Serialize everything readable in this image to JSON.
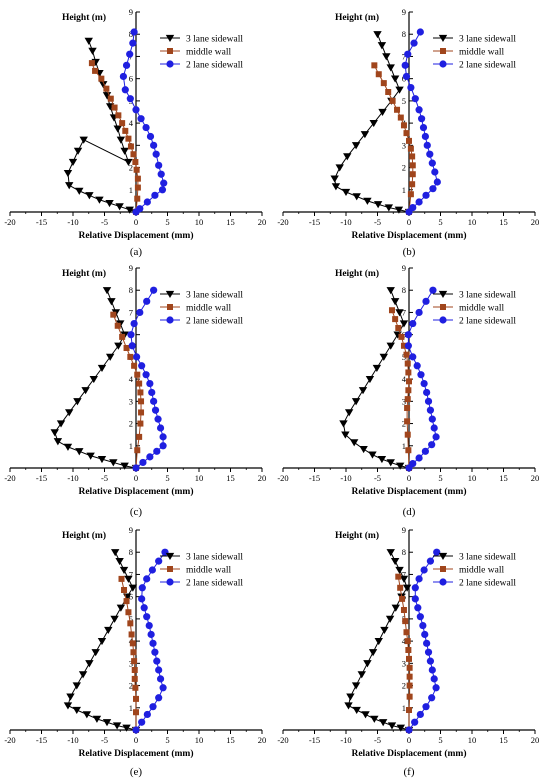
{
  "figure": {
    "legend_labels": [
      "3 lane sidewall",
      "middle wall",
      "2 lane sidewall"
    ],
    "colors": {
      "three_lane": "#000000",
      "middle": "#a0451c",
      "two_lane": "#1f1fe0",
      "axis": "#000000"
    },
    "markers": {
      "three_lane": "triangle-down",
      "middle": "square",
      "two_lane": "circle"
    }
  },
  "chart_data": [
    {
      "type": "line",
      "panel_label": "(a)",
      "xlabel": "Relative Displacement (mm)",
      "ylabel": "Height (m)",
      "xlim": [
        -20,
        20
      ],
      "ylim": [
        0,
        9
      ],
      "xticks": [
        -20,
        -15,
        -10,
        -5,
        0,
        5,
        10,
        15,
        20
      ],
      "yticks": [
        1,
        2,
        3,
        4,
        5,
        6,
        7,
        8,
        9
      ],
      "legend_position": "top-right",
      "series": [
        {
          "name": "3 lane sidewall",
          "marker": "triangle-down",
          "x": [
            -7.5,
            -6.9,
            -6.4,
            -5.8,
            -5.2,
            -4.6,
            -4.1,
            -3.5,
            -2.9,
            -2.4,
            -1.8,
            -1.2,
            -8.3,
            -9.2,
            -10.0,
            -10.8,
            -10.6,
            -9.0,
            -7.4,
            -5.8,
            -4.2,
            -2.6,
            -1.0,
            0.0
          ],
          "y": [
            7.7,
            7.25,
            6.75,
            6.25,
            5.75,
            5.25,
            4.75,
            4.25,
            3.75,
            3.25,
            2.75,
            2.25,
            3.25,
            2.75,
            2.25,
            1.75,
            1.2,
            0.95,
            0.75,
            0.55,
            0.4,
            0.25,
            0.1,
            0.0
          ]
        },
        {
          "name": "middle wall",
          "marker": "square",
          "x": [
            -7.0,
            -6.5,
            -5.5,
            -4.7,
            -4.0,
            -3.4,
            -2.8,
            -2.2,
            -1.7,
            -1.2,
            -0.8,
            -0.4,
            -0.1,
            0.1,
            0.3,
            0.3,
            0.2,
            0.0
          ],
          "y": [
            6.7,
            6.35,
            6.0,
            5.55,
            5.1,
            4.7,
            4.35,
            4.0,
            3.65,
            3.3,
            2.95,
            2.6,
            2.25,
            1.9,
            1.5,
            1.1,
            0.6,
            0.0
          ]
        },
        {
          "name": "2 lane sidewall",
          "marker": "circle",
          "x": [
            -0.3,
            -0.5,
            -1.0,
            -1.5,
            -2.0,
            -1.7,
            -0.9,
            0.0,
            0.8,
            1.6,
            2.3,
            2.8,
            3.2,
            3.6,
            4.0,
            4.4,
            4.2,
            3.0,
            1.8,
            0.6,
            0.0
          ],
          "y": [
            8.1,
            7.6,
            7.1,
            6.6,
            6.1,
            5.5,
            5.1,
            4.6,
            4.2,
            3.8,
            3.4,
            3.0,
            2.6,
            2.1,
            1.7,
            1.3,
            1.0,
            0.75,
            0.45,
            0.15,
            0.0
          ]
        }
      ]
    },
    {
      "type": "line",
      "panel_label": "(b)",
      "xlabel": "Relative Displacement (mm)",
      "ylabel": "Height (m)",
      "xlim": [
        -20,
        20
      ],
      "ylim": [
        0,
        9
      ],
      "xticks": [
        -20,
        -15,
        -10,
        -5,
        0,
        5,
        10,
        15,
        20
      ],
      "yticks": [
        1,
        2,
        3,
        4,
        5,
        6,
        7,
        8,
        9
      ],
      "legend_position": "top-right",
      "series": [
        {
          "name": "3 lane sidewall",
          "marker": "triangle-down",
          "x": [
            -5.0,
            -4.3,
            -3.6,
            -2.9,
            -2.2,
            -1.5,
            -2.8,
            -4.2,
            -5.6,
            -7.0,
            -8.4,
            -9.8,
            -11.0,
            -11.8,
            -11.6,
            -10.0,
            -8.3,
            -6.6,
            -4.9,
            -3.2,
            -1.6,
            0.0
          ],
          "y": [
            8.0,
            7.5,
            7.0,
            6.5,
            6.0,
            5.5,
            5.0,
            4.5,
            4.0,
            3.5,
            3.0,
            2.5,
            2.0,
            1.5,
            1.15,
            0.9,
            0.7,
            0.5,
            0.35,
            0.2,
            0.1,
            0.0
          ]
        },
        {
          "name": "middle wall",
          "marker": "square",
          "x": [
            -5.5,
            -4.8,
            -4.0,
            -3.3,
            -2.6,
            -1.9,
            -1.3,
            -0.8,
            -0.4,
            0.0,
            0.3,
            0.5,
            0.6,
            0.6,
            0.5,
            0.3,
            0.0
          ],
          "y": [
            6.6,
            6.2,
            5.8,
            5.4,
            5.0,
            4.6,
            4.25,
            3.9,
            3.55,
            3.2,
            2.85,
            2.5,
            2.1,
            1.7,
            1.25,
            0.8,
            0.0
          ]
        },
        {
          "name": "2 lane sidewall",
          "marker": "circle",
          "x": [
            1.8,
            0.8,
            -0.2,
            -0.6,
            -0.4,
            0.3,
            1.0,
            1.6,
            2.0,
            2.3,
            2.6,
            2.9,
            3.3,
            3.7,
            4.1,
            4.5,
            3.8,
            2.7,
            1.6,
            0.6,
            0.0
          ],
          "y": [
            8.1,
            7.6,
            7.1,
            6.6,
            6.1,
            5.6,
            5.1,
            4.6,
            4.2,
            3.8,
            3.4,
            3.0,
            2.6,
            2.2,
            1.8,
            1.35,
            1.05,
            0.75,
            0.45,
            0.2,
            0.0
          ]
        }
      ]
    },
    {
      "type": "line",
      "panel_label": "(c)",
      "xlabel": "Relative Displacement (mm)",
      "ylabel": "Height (m)",
      "xlim": [
        -20,
        20
      ],
      "ylim": [
        0,
        9
      ],
      "xticks": [
        -20,
        -15,
        -10,
        -5,
        0,
        5,
        10,
        15,
        20
      ],
      "yticks": [
        1,
        2,
        3,
        4,
        5,
        6,
        7,
        8,
        9
      ],
      "legend_position": "top-right",
      "series": [
        {
          "name": "3 lane sidewall",
          "marker": "triangle-down",
          "x": [
            -4.6,
            -3.9,
            -3.2,
            -2.5,
            -1.8,
            -2.8,
            -4.1,
            -5.4,
            -6.7,
            -8.0,
            -9.3,
            -10.6,
            -11.9,
            -12.9,
            -12.4,
            -10.8,
            -9.0,
            -7.2,
            -5.4,
            -3.6,
            -1.8,
            0.0
          ],
          "y": [
            8.0,
            7.5,
            7.0,
            6.5,
            6.0,
            5.5,
            5.0,
            4.5,
            4.0,
            3.5,
            3.0,
            2.5,
            2.0,
            1.6,
            1.2,
            0.95,
            0.75,
            0.55,
            0.4,
            0.25,
            0.1,
            0.0
          ]
        },
        {
          "name": "middle wall",
          "marker": "square",
          "x": [
            -3.6,
            -2.9,
            -2.2,
            -1.5,
            -0.9,
            -0.3,
            0.2,
            0.5,
            0.7,
            0.8,
            0.8,
            0.7,
            0.5,
            0.2,
            0.0
          ],
          "y": [
            6.9,
            6.4,
            5.9,
            5.4,
            5.0,
            4.6,
            4.2,
            3.8,
            3.4,
            3.0,
            2.5,
            2.0,
            1.4,
            0.8,
            0.0
          ]
        },
        {
          "name": "2 lane sidewall",
          "marker": "circle",
          "x": [
            2.8,
            1.7,
            0.6,
            -0.3,
            -0.8,
            -0.6,
            0.1,
            0.9,
            1.6,
            2.2,
            2.5,
            2.8,
            3.1,
            3.5,
            3.9,
            4.3,
            4.3,
            3.3,
            2.2,
            1.1,
            0.0
          ],
          "y": [
            8.0,
            7.5,
            7.0,
            6.5,
            6.0,
            5.5,
            5.0,
            4.6,
            4.2,
            3.8,
            3.4,
            3.0,
            2.6,
            2.2,
            1.8,
            1.4,
            1.0,
            0.75,
            0.5,
            0.25,
            0.0
          ]
        }
      ]
    },
    {
      "type": "line",
      "panel_label": "(d)",
      "xlabel": "Relative Displacement (mm)",
      "ylabel": "Height (m)",
      "xlim": [
        -20,
        20
      ],
      "ylim": [
        0,
        9
      ],
      "xticks": [
        -20,
        -15,
        -10,
        -5,
        0,
        5,
        10,
        15,
        20
      ],
      "yticks": [
        1,
        2,
        3,
        4,
        5,
        6,
        7,
        8,
        9
      ],
      "legend_position": "top-right",
      "series": [
        {
          "name": "3 lane sidewall",
          "marker": "triangle-down",
          "x": [
            -2.9,
            -2.2,
            -1.5,
            -0.8,
            -1.8,
            -2.9,
            -4.0,
            -5.1,
            -6.2,
            -7.3,
            -8.4,
            -9.5,
            -10.4,
            -10.1,
            -8.7,
            -7.2,
            -5.8,
            -4.3,
            -2.9,
            -1.4,
            0.0
          ],
          "y": [
            8.0,
            7.5,
            7.0,
            6.5,
            6.0,
            5.5,
            5.0,
            4.5,
            4.0,
            3.5,
            3.0,
            2.5,
            2.0,
            1.5,
            1.15,
            0.85,
            0.6,
            0.4,
            0.25,
            0.1,
            0.0
          ]
        },
        {
          "name": "middle wall",
          "marker": "square",
          "x": [
            -2.7,
            -2.2,
            -1.7,
            -1.2,
            -0.8,
            -0.4,
            -0.2,
            -0.1,
            0.0,
            -0.1,
            -0.2,
            -0.3,
            -0.3,
            -0.2,
            -0.1,
            0.0
          ],
          "y": [
            7.1,
            6.7,
            6.3,
            5.9,
            5.5,
            5.1,
            4.7,
            4.3,
            3.9,
            3.5,
            3.1,
            2.7,
            2.1,
            1.5,
            0.8,
            0.0
          ]
        },
        {
          "name": "2 lane sidewall",
          "marker": "circle",
          "x": [
            3.8,
            2.7,
            1.6,
            0.6,
            -0.1,
            -0.1,
            0.6,
            1.3,
            1.9,
            2.4,
            2.8,
            3.1,
            3.4,
            3.7,
            4.0,
            4.3,
            3.6,
            2.6,
            1.6,
            0.6,
            0.0
          ],
          "y": [
            8.0,
            7.5,
            7.0,
            6.5,
            6.0,
            5.5,
            5.0,
            4.6,
            4.2,
            3.8,
            3.4,
            3.0,
            2.6,
            2.2,
            1.8,
            1.4,
            1.05,
            0.75,
            0.45,
            0.2,
            0.0
          ]
        }
      ]
    },
    {
      "type": "line",
      "panel_label": "(e)",
      "xlabel": "Relative Displacement (mm)",
      "ylabel": "Height (m)",
      "xlim": [
        -20,
        20
      ],
      "ylim": [
        0,
        9
      ],
      "xticks": [
        -20,
        -15,
        -10,
        -5,
        0,
        5,
        10,
        15,
        20
      ],
      "yticks": [
        1,
        2,
        3,
        4,
        5,
        6,
        7,
        8,
        9
      ],
      "legend_position": "top-right",
      "series": [
        {
          "name": "3 lane sidewall",
          "marker": "triangle-down",
          "x": [
            -3.3,
            -2.6,
            -1.9,
            -1.2,
            -0.5,
            -1.4,
            -2.4,
            -3.4,
            -4.4,
            -5.4,
            -6.4,
            -7.4,
            -8.4,
            -9.4,
            -10.4,
            -10.8,
            -9.4,
            -7.8,
            -6.2,
            -4.6,
            -3.0,
            -1.5,
            0.0
          ],
          "y": [
            8.0,
            7.6,
            7.2,
            6.8,
            6.4,
            6.0,
            5.5,
            5.0,
            4.5,
            4.0,
            3.5,
            3.0,
            2.5,
            2.0,
            1.5,
            1.1,
            0.9,
            0.7,
            0.5,
            0.35,
            0.2,
            0.1,
            0.0
          ]
        },
        {
          "name": "middle wall",
          "marker": "square",
          "x": [
            -2.3,
            -1.9,
            -1.5,
            -1.2,
            -0.9,
            -0.7,
            -0.5,
            -0.4,
            -0.3,
            -0.2,
            -0.2,
            -0.1,
            0.0,
            0.0,
            0.0
          ],
          "y": [
            6.8,
            6.3,
            5.8,
            5.3,
            4.8,
            4.3,
            3.9,
            3.5,
            3.1,
            2.7,
            2.3,
            1.9,
            1.4,
            0.8,
            0.0
          ]
        },
        {
          "name": "2 lane sidewall",
          "marker": "circle",
          "x": [
            4.6,
            3.6,
            2.6,
            1.7,
            1.0,
            0.9,
            1.3,
            1.7,
            2.1,
            2.4,
            2.7,
            3.0,
            3.3,
            3.6,
            3.9,
            4.3,
            3.6,
            2.7,
            1.8,
            0.9,
            0.0
          ],
          "y": [
            8.0,
            7.6,
            7.2,
            6.8,
            6.4,
            5.9,
            5.5,
            5.1,
            4.7,
            4.3,
            3.9,
            3.5,
            3.1,
            2.7,
            2.3,
            1.9,
            1.45,
            1.05,
            0.7,
            0.35,
            0.0
          ]
        }
      ]
    },
    {
      "type": "line",
      "panel_label": "(f)",
      "xlabel": "Relative Displacement (mm)",
      "ylabel": "Height (m)",
      "xlim": [
        -20,
        20
      ],
      "ylim": [
        0,
        9
      ],
      "xticks": [
        -20,
        -15,
        -10,
        -5,
        0,
        5,
        10,
        15,
        20
      ],
      "yticks": [
        1,
        2,
        3,
        4,
        5,
        6,
        7,
        8,
        9
      ],
      "legend_position": "top-right",
      "series": [
        {
          "name": "3 lane sidewall",
          "marker": "triangle-down",
          "x": [
            -2.9,
            -2.2,
            -1.5,
            -0.8,
            -0.3,
            -1.2,
            -2.1,
            -3.0,
            -3.9,
            -4.8,
            -5.7,
            -6.6,
            -7.5,
            -8.4,
            -9.3,
            -9.6,
            -8.3,
            -6.9,
            -5.5,
            -4.1,
            -2.7,
            -1.3,
            0.0
          ],
          "y": [
            8.0,
            7.6,
            7.2,
            6.8,
            6.4,
            6.0,
            5.5,
            5.0,
            4.5,
            4.0,
            3.5,
            3.0,
            2.5,
            2.0,
            1.5,
            1.1,
            0.9,
            0.7,
            0.5,
            0.35,
            0.2,
            0.1,
            0.0
          ]
        },
        {
          "name": "middle wall",
          "marker": "square",
          "x": [
            -1.7,
            -1.4,
            -1.1,
            -0.8,
            -0.6,
            -0.4,
            -0.2,
            -0.1,
            0.0,
            0.1,
            0.1,
            0.1,
            0.1,
            0.0,
            0.0
          ],
          "y": [
            6.9,
            6.4,
            5.9,
            5.4,
            4.9,
            4.4,
            4.0,
            3.6,
            3.2,
            2.8,
            2.4,
            2.0,
            1.5,
            0.9,
            0.0
          ]
        },
        {
          "name": "2 lane sidewall",
          "marker": "circle",
          "x": [
            4.4,
            3.4,
            2.4,
            1.6,
            1.0,
            1.0,
            1.4,
            1.8,
            2.2,
            2.5,
            2.8,
            3.1,
            3.4,
            3.7,
            4.0,
            4.3,
            3.6,
            2.7,
            1.8,
            0.9,
            0.0
          ],
          "y": [
            8.0,
            7.6,
            7.2,
            6.8,
            6.4,
            5.9,
            5.5,
            5.1,
            4.7,
            4.3,
            3.9,
            3.5,
            3.1,
            2.7,
            2.3,
            1.9,
            1.45,
            1.05,
            0.7,
            0.35,
            0.0
          ]
        }
      ]
    }
  ]
}
